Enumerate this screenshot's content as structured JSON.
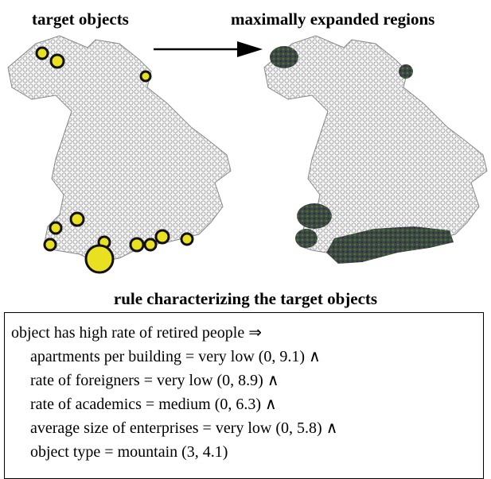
{
  "figure": {
    "left_title": "target objects",
    "right_title": "maximally expanded regions",
    "rule_title": "rule characterizing the target objects",
    "rule_lines": [
      "object has high rate of retired people ⇒",
      "apartments per building = very low (0, 9.1) ∧",
      "rate of foreigners = very low (0, 8.9) ∧",
      "rate of academics = medium (0, 6.3) ∧",
      "average size of enterprises = very low (0, 5.8) ∧",
      "object type = mountain (3, 4.1)"
    ]
  }
}
